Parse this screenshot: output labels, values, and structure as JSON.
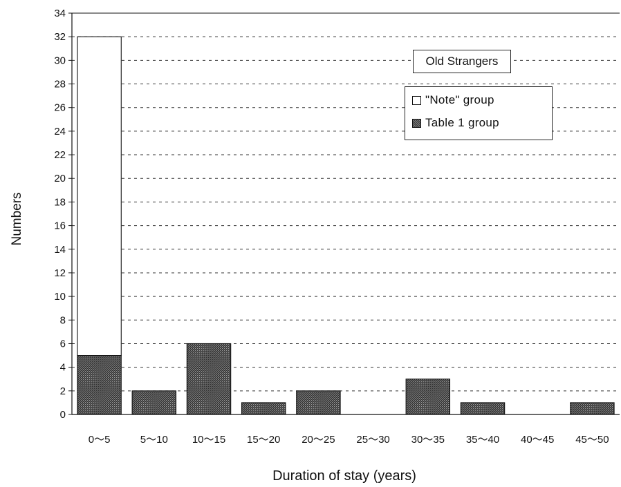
{
  "chart_data": {
    "type": "bar",
    "stacked": true,
    "subtitle": "Old Strangers",
    "xlabel": "Duration of stay (years)",
    "ylabel": "Numbers",
    "ylim": [
      0,
      34
    ],
    "yticks": [
      0,
      2,
      4,
      6,
      8,
      10,
      12,
      14,
      16,
      18,
      20,
      22,
      24,
      26,
      28,
      30,
      32,
      34
    ],
    "grid": "horizontal-dashed",
    "legend_position": "top-right",
    "categories": [
      "0～5",
      "5～10",
      "10～15",
      "15～20",
      "20～25",
      "25～30",
      "30～35",
      "35～40",
      "40～45",
      "45～50"
    ],
    "series": [
      {
        "name": "Table 1 group",
        "pattern": "dark-hatched",
        "values": [
          5,
          2,
          6,
          1,
          2,
          0,
          3,
          1,
          0,
          1
        ]
      },
      {
        "name": "\"Note\" group",
        "pattern": "white",
        "values": [
          27,
          0,
          0,
          0,
          0,
          0,
          0,
          0,
          0,
          0
        ]
      }
    ]
  }
}
